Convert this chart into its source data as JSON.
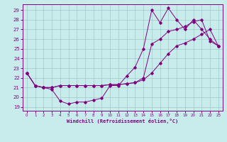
{
  "xlabel": "Windchill (Refroidissement éolien,°C)",
  "bg_color": "#c8ecec",
  "line_color": "#800080",
  "grid_color": "#a0c8c8",
  "ylim": [
    18.6,
    29.6
  ],
  "xlim": [
    -0.5,
    23.5
  ],
  "line1_x": [
    0,
    1,
    2,
    3,
    4,
    5,
    6,
    7,
    8,
    9,
    10,
    11,
    12,
    13,
    14,
    15,
    16,
    17,
    18,
    19,
    20,
    21,
    22,
    23
  ],
  "line1_y": [
    22.5,
    21.2,
    21.0,
    20.8,
    19.6,
    19.3,
    19.5,
    19.5,
    19.7,
    19.9,
    21.2,
    21.2,
    22.2,
    23.1,
    25.0,
    29.0,
    27.7,
    29.2,
    28.0,
    27.0,
    28.0,
    27.0,
    26.0,
    25.3
  ],
  "line2_x": [
    0,
    1,
    2,
    3,
    4,
    5,
    6,
    7,
    8,
    9,
    10,
    11,
    12,
    13,
    14,
    15,
    16,
    17,
    18,
    19,
    20,
    21,
    22,
    23
  ],
  "line2_y": [
    22.5,
    21.2,
    21.0,
    21.0,
    21.2,
    21.2,
    21.2,
    21.2,
    21.2,
    21.2,
    21.3,
    21.3,
    21.4,
    21.5,
    21.8,
    22.5,
    23.5,
    24.5,
    25.3,
    25.6,
    26.0,
    26.5,
    27.0,
    25.3
  ],
  "line3_x": [
    0,
    1,
    2,
    3,
    4,
    5,
    6,
    7,
    8,
    9,
    10,
    11,
    12,
    13,
    14,
    15,
    16,
    17,
    18,
    19,
    20,
    21,
    22,
    23
  ],
  "line3_y": [
    22.5,
    21.2,
    21.0,
    21.0,
    21.2,
    21.2,
    21.2,
    21.2,
    21.2,
    21.2,
    21.3,
    21.3,
    21.4,
    21.5,
    22.0,
    25.5,
    26.0,
    26.8,
    27.0,
    27.3,
    27.8,
    28.0,
    25.8,
    25.3
  ]
}
